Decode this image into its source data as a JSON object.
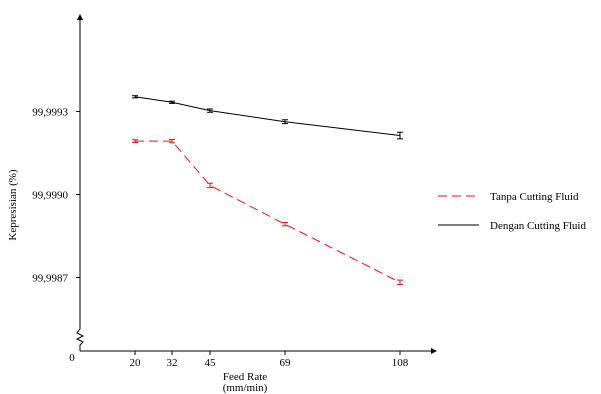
{
  "chart_data": {
    "type": "line",
    "ylabel": "Kepresisian (%)",
    "xlabel": "Feed Rate",
    "xlabel_unit": "(mm/min)",
    "origin_label": "0",
    "categories": [
      "20",
      "32",
      "45",
      "69",
      "108"
    ],
    "y_ticks": [
      "99,9993",
      "99,9990",
      "99,9987"
    ],
    "y_tick_values": [
      99.9993,
      99.999,
      99.9987
    ],
    "ylim": [
      99.99845,
      99.99962
    ],
    "axis_break_y": true,
    "legend_position": "right",
    "series": [
      {
        "name": "Tanpa Cutting Fluid",
        "color": "#e8161b",
        "dash": "dashed",
        "values": [
          99.99919,
          99.99919,
          99.99903,
          99.99889,
          99.99868
        ],
        "errors": [
          5e-06,
          6e-06,
          8e-06,
          6e-06,
          8e-06
        ]
      },
      {
        "name": "Dengan Cutting Fluid",
        "color": "#000000",
        "dash": "solid",
        "values": [
          99.99935,
          99.99933,
          99.9993,
          99.99926,
          99.99921
        ],
        "errors": [
          4e-06,
          4e-06,
          6e-06,
          7e-06,
          1.2e-05
        ]
      }
    ]
  }
}
